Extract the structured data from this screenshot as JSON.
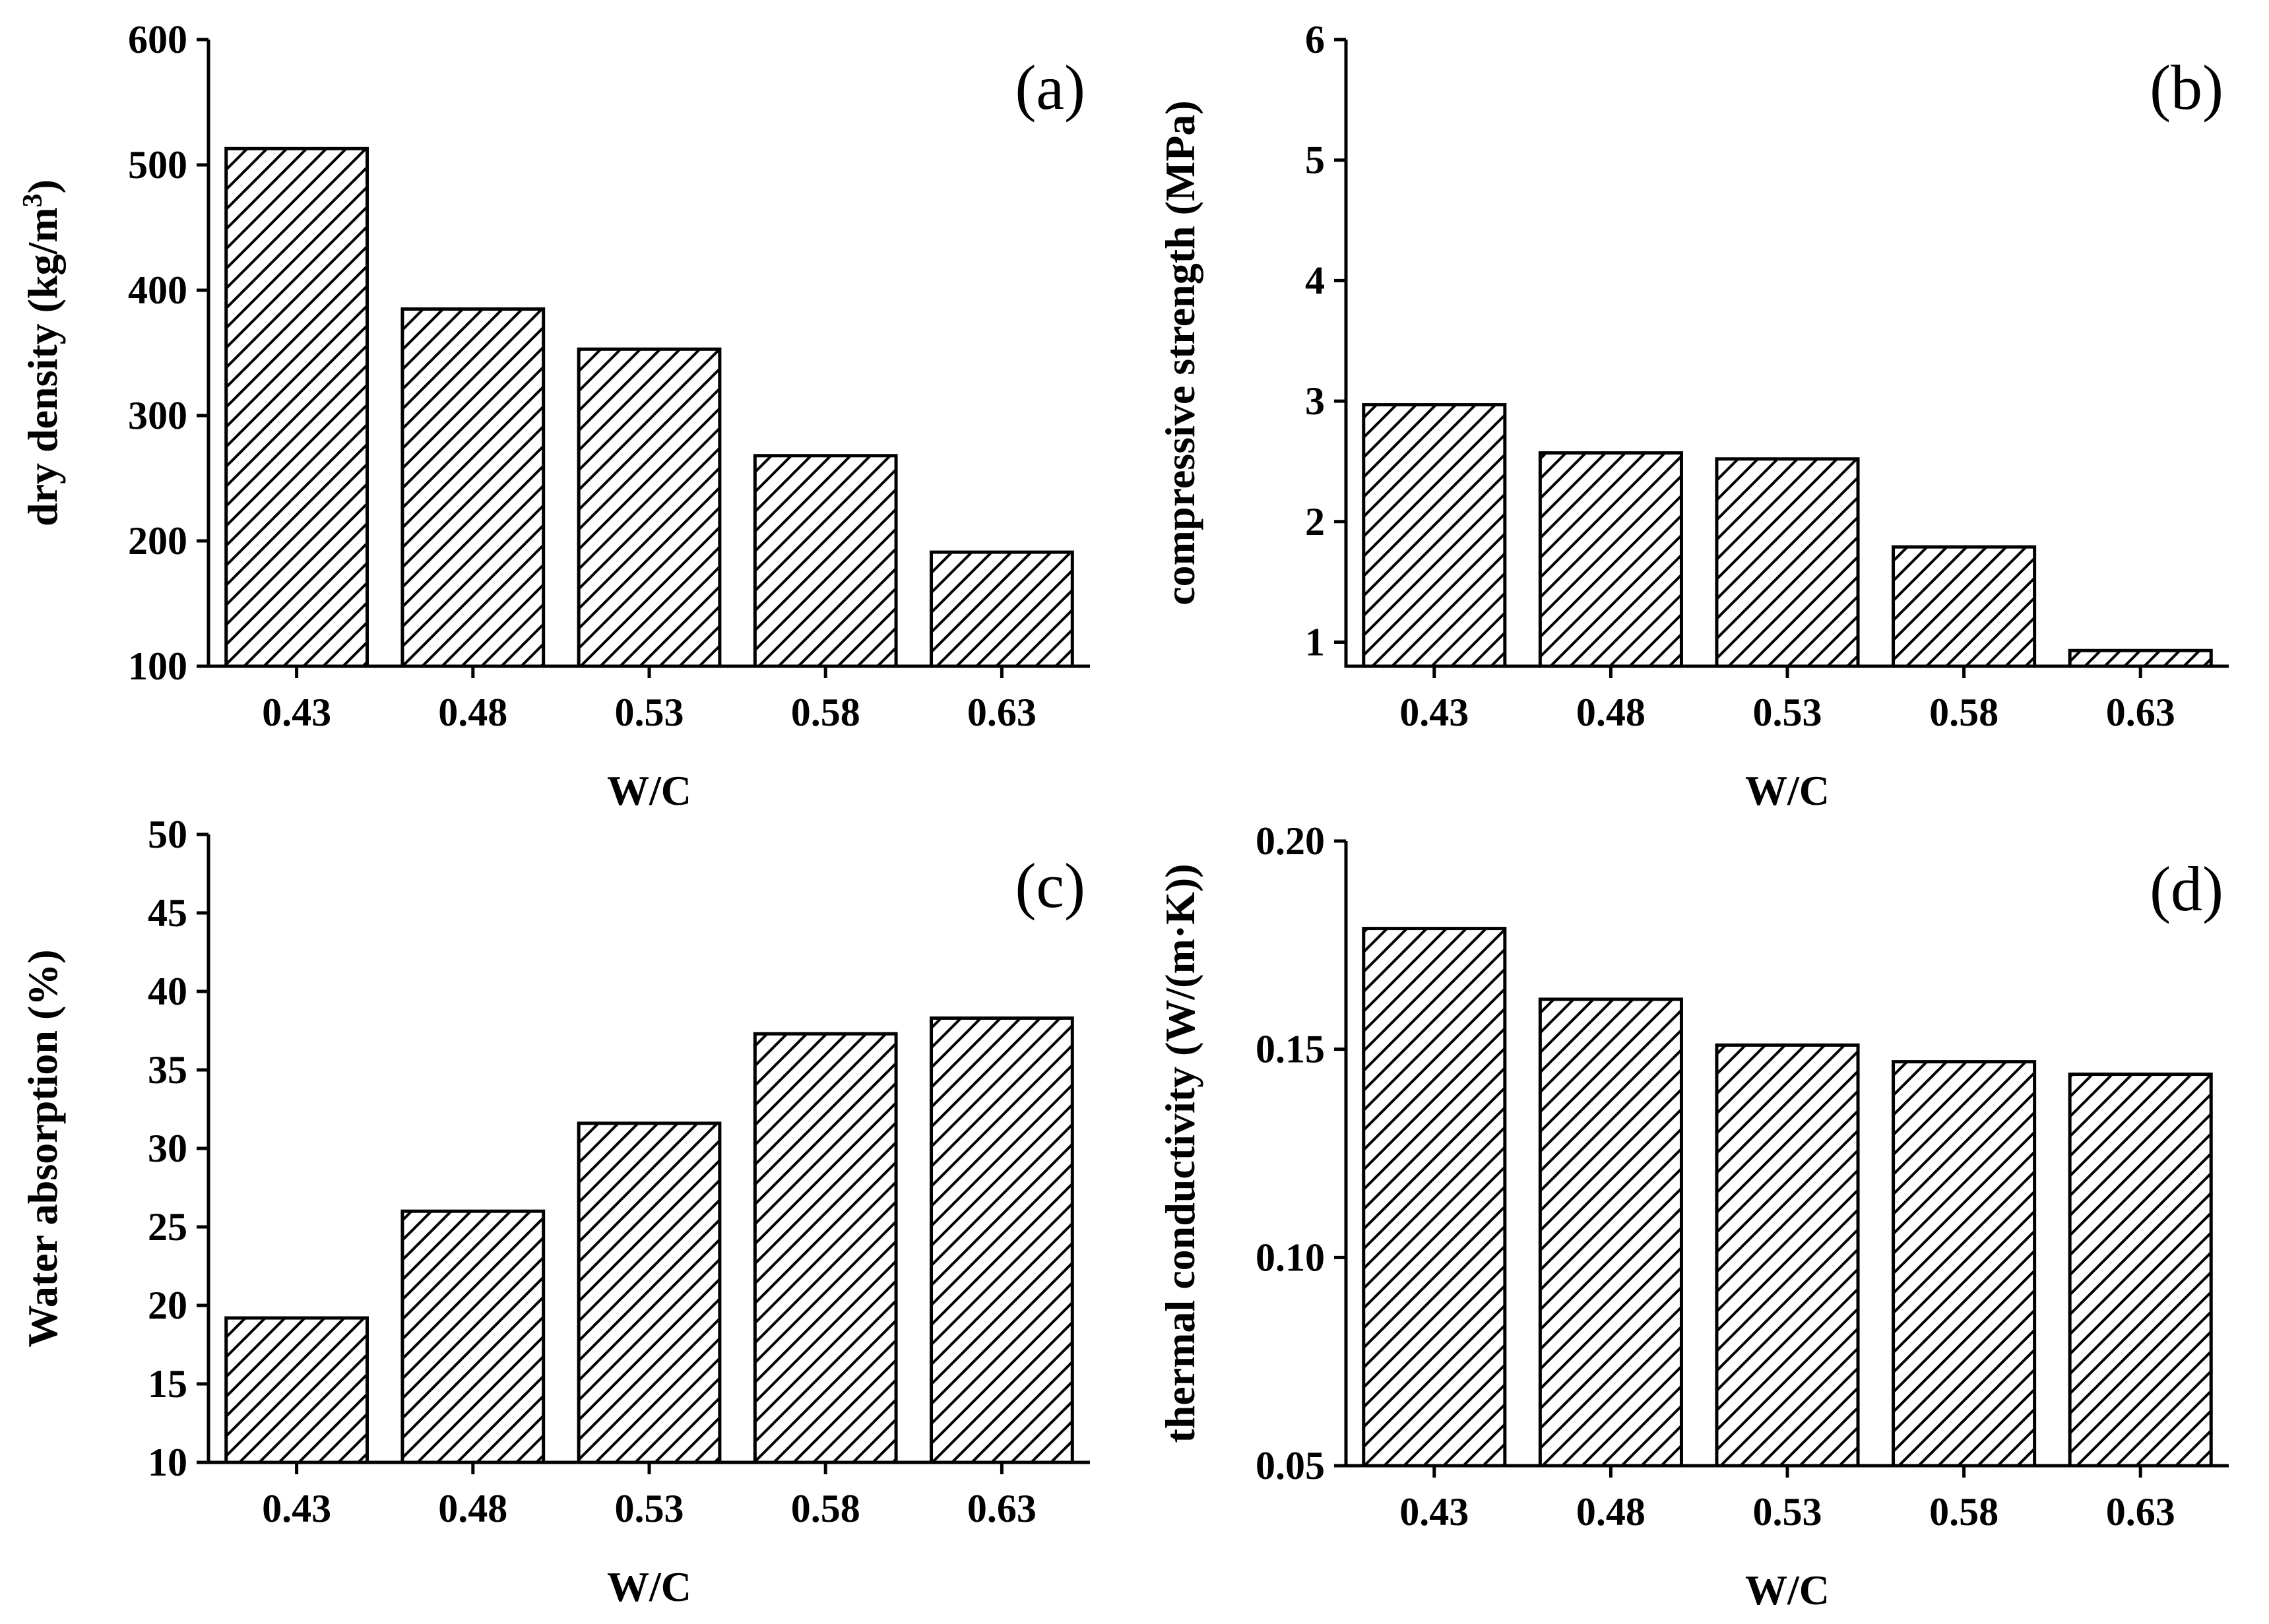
{
  "chart_data": [
    {
      "type": "bar",
      "panel_label": "(a)",
      "categories": [
        "0.43",
        "0.48",
        "0.53",
        "0.58",
        "0.63"
      ],
      "values": [
        513,
        385,
        353,
        268,
        191
      ],
      "title": "",
      "xlabel": "W/C",
      "ylabel": "dry density (kg/m",
      "ylabel_superscript": "3",
      "ylabel_close": ")",
      "ylim": [
        100,
        600
      ],
      "yticks": [
        "100",
        "200",
        "300",
        "400",
        "500",
        "600"
      ],
      "ytick_values": [
        100,
        200,
        300,
        400,
        500,
        600
      ],
      "grid": false,
      "bar_fill": "diagonal-hatch"
    },
    {
      "type": "bar",
      "panel_label": "(b)",
      "categories": [
        "0.43",
        "0.48",
        "0.53",
        "0.58",
        "0.63"
      ],
      "values": [
        2.97,
        2.57,
        2.52,
        1.79,
        0.93
      ],
      "title": "",
      "xlabel": "W/C",
      "ylabel": "compressive strength (MPa)",
      "ylim": [
        0.8,
        6
      ],
      "yticks": [
        "1",
        "2",
        "3",
        "4",
        "5",
        "6"
      ],
      "ytick_values": [
        1,
        2,
        3,
        4,
        5,
        6
      ],
      "grid": false,
      "bar_fill": "diagonal-hatch"
    },
    {
      "type": "bar",
      "panel_label": "(c)",
      "categories": [
        "0.43",
        "0.48",
        "0.53",
        "0.58",
        "0.63"
      ],
      "values": [
        19.2,
        26.0,
        31.6,
        37.3,
        38.3
      ],
      "title": "",
      "xlabel": "W/C",
      "ylabel": "Water absorption (%)",
      "ylim": [
        10,
        50
      ],
      "yticks": [
        "10",
        "15",
        "20",
        "25",
        "30",
        "35",
        "40",
        "45",
        "50"
      ],
      "ytick_values": [
        10,
        15,
        20,
        25,
        30,
        35,
        40,
        45,
        50
      ],
      "grid": false,
      "bar_fill": "diagonal-hatch"
    },
    {
      "type": "bar",
      "panel_label": "(d)",
      "categories": [
        "0.43",
        "0.48",
        "0.53",
        "0.58",
        "0.63"
      ],
      "values": [
        0.179,
        0.162,
        0.151,
        0.147,
        0.144
      ],
      "title": "",
      "xlabel": "W/C",
      "ylabel": "thermal conductivity (W/(m·K))",
      "ylim": [
        0.05,
        0.2
      ],
      "yticks": [
        "0.05",
        "0.10",
        "0.15",
        "0.20"
      ],
      "ytick_values": [
        0.05,
        0.1,
        0.15,
        0.2
      ],
      "grid": false,
      "bar_fill": "diagonal-hatch"
    }
  ],
  "colors": {
    "ink": "#000000",
    "bar_background": "#ffffff",
    "page": "#ffffff"
  }
}
